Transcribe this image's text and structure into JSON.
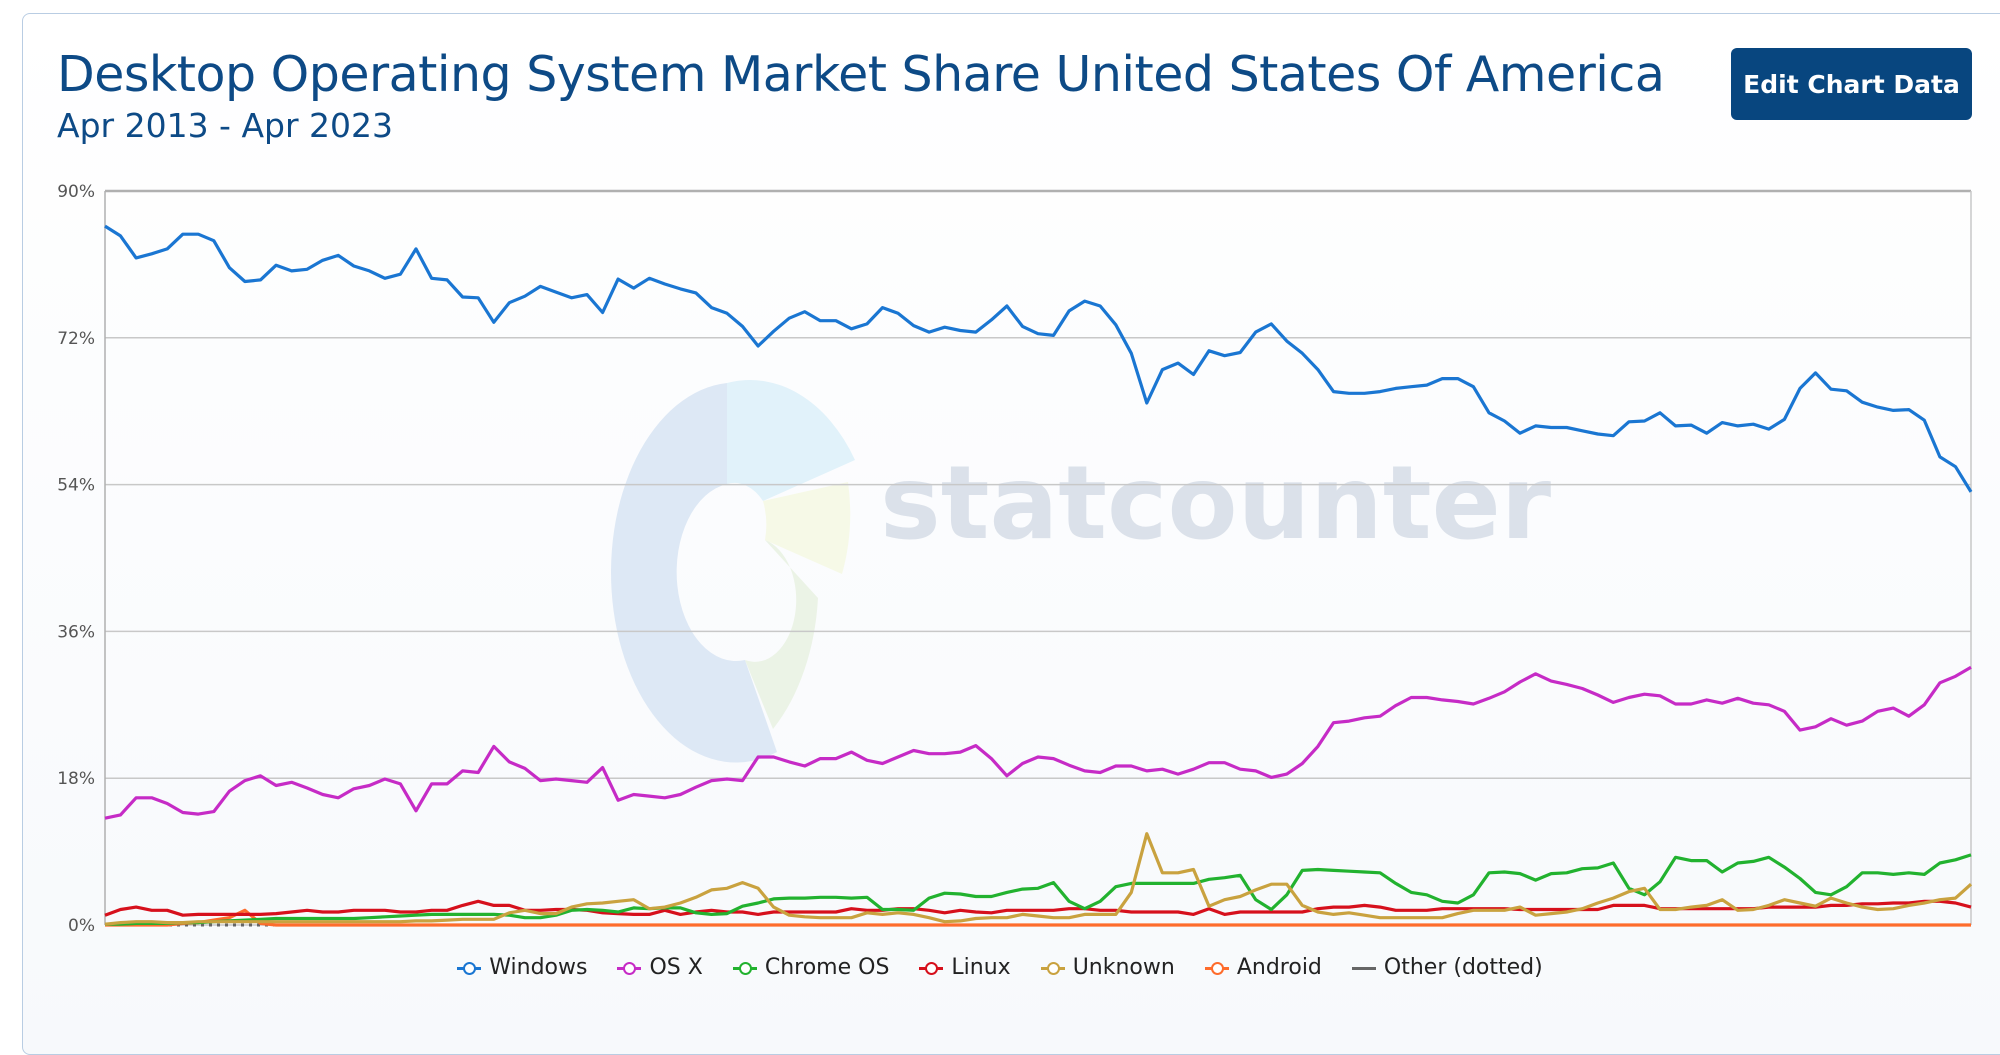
{
  "header": {
    "title": "Desktop Operating System Market Share United States Of America",
    "subtitle": "Apr 2013 - Apr 2023",
    "edit_button": "Edit Chart Data"
  },
  "watermark": "statcounter",
  "chart_data": {
    "type": "line",
    "title": "Desktop Operating System Market Share United States Of America",
    "subtitle": "Apr 2013 - Apr 2023",
    "x_start": "Apr 2013",
    "x_end": "Apr 2023",
    "x_interval": "monthly",
    "ylim": [
      0,
      90
    ],
    "yticks": [
      0,
      18,
      36,
      54,
      72,
      90
    ],
    "ytick_labels": [
      "0%",
      "18%",
      "36%",
      "54%",
      "72%",
      "90%"
    ],
    "grid": true,
    "legend_position": "bottom",
    "series": [
      {
        "name": "Windows",
        "color": "#1a76d2",
        "values": [
          85.7,
          84.5,
          81.8,
          82.3,
          82.9,
          84.7,
          84.7,
          83.9,
          80.6,
          78.9,
          79.1,
          80.9,
          80.2,
          80.4,
          81.5,
          82.1,
          80.8,
          80.2,
          79.3,
          79.8,
          82.9,
          79.3,
          79.1,
          77.0,
          76.9,
          73.9,
          76.3,
          77.1,
          78.3,
          77.6,
          76.9,
          77.3,
          75.1,
          79.2,
          78.1,
          79.3,
          78.6,
          78.0,
          77.5,
          75.7,
          75.0,
          73.4,
          71.0,
          72.8,
          74.4,
          75.2,
          74.1,
          74.1,
          73.1,
          73.7,
          75.7,
          75.0,
          73.5,
          72.7,
          73.3,
          72.9,
          72.7,
          74.2,
          75.9,
          73.4,
          72.5,
          72.3,
          75.3,
          76.5,
          75.9,
          73.6,
          70.1,
          64.0,
          68.1,
          68.9,
          67.5,
          70.4,
          69.8,
          70.2,
          72.7,
          73.7,
          71.6,
          70.1,
          68.1,
          65.4,
          65.2,
          65.2,
          65.4,
          65.8,
          66.0,
          66.2,
          67.0,
          67.0,
          66.0,
          62.8,
          61.8,
          60.3,
          61.2,
          61.0,
          61.0,
          60.6,
          60.2,
          60.0,
          61.7,
          61.8,
          62.8,
          61.2,
          61.3,
          60.3,
          61.6,
          61.2,
          61.4,
          60.8,
          62.0,
          65.8,
          67.7,
          65.7,
          65.5,
          64.1,
          63.5,
          63.1,
          63.2,
          61.9,
          57.4,
          56.2,
          53.1
        ]
      },
      {
        "name": "OS X",
        "color": "#c62bc6",
        "values": [
          13.1,
          13.5,
          15.6,
          15.6,
          14.9,
          13.8,
          13.6,
          13.9,
          16.4,
          17.7,
          18.3,
          17.1,
          17.5,
          16.8,
          16.0,
          15.6,
          16.7,
          17.1,
          17.9,
          17.3,
          14.0,
          17.3,
          17.3,
          18.9,
          18.7,
          21.9,
          20.0,
          19.2,
          17.7,
          17.9,
          17.7,
          17.5,
          19.3,
          15.3,
          16.0,
          15.8,
          15.6,
          16.0,
          16.9,
          17.7,
          17.9,
          17.7,
          20.6,
          20.6,
          20.0,
          19.5,
          20.4,
          20.4,
          21.2,
          20.2,
          19.8,
          20.6,
          21.4,
          21.0,
          21.0,
          21.2,
          22.0,
          20.4,
          18.3,
          19.8,
          20.6,
          20.4,
          19.6,
          18.9,
          18.7,
          19.5,
          19.5,
          18.9,
          19.1,
          18.5,
          19.1,
          19.9,
          19.9,
          19.1,
          18.9,
          18.1,
          18.5,
          19.8,
          21.9,
          24.8,
          25.0,
          25.4,
          25.6,
          26.9,
          27.9,
          27.9,
          27.6,
          27.4,
          27.1,
          27.8,
          28.6,
          29.8,
          30.8,
          29.9,
          29.5,
          29.0,
          28.2,
          27.3,
          27.9,
          28.3,
          28.1,
          27.1,
          27.1,
          27.6,
          27.2,
          27.8,
          27.2,
          27.0,
          26.2,
          23.9,
          24.3,
          25.3,
          24.5,
          25.0,
          26.2,
          26.6,
          25.6,
          27.0,
          29.7,
          30.5,
          31.6
        ]
      },
      {
        "name": "Chrome OS",
        "color": "#22b22f",
        "values": [
          0.1,
          0.1,
          0.2,
          0.2,
          0.2,
          0.3,
          0.3,
          0.4,
          0.5,
          0.6,
          0.7,
          0.8,
          0.8,
          0.8,
          0.8,
          0.8,
          0.8,
          0.9,
          1.0,
          1.1,
          1.2,
          1.3,
          1.3,
          1.3,
          1.3,
          1.3,
          1.2,
          0.9,
          0.9,
          1.2,
          1.8,
          1.9,
          1.8,
          1.6,
          2.1,
          2.0,
          2.1,
          2.1,
          1.5,
          1.3,
          1.4,
          2.3,
          2.7,
          3.2,
          3.3,
          3.3,
          3.4,
          3.4,
          3.3,
          3.4,
          1.9,
          1.9,
          1.8,
          3.3,
          3.9,
          3.8,
          3.5,
          3.5,
          4.0,
          4.4,
          4.5,
          5.2,
          2.9,
          2.0,
          2.9,
          4.7,
          5.1,
          5.1,
          5.1,
          5.1,
          5.1,
          5.6,
          5.8,
          6.1,
          3.1,
          1.9,
          3.7,
          6.7,
          6.8,
          6.7,
          6.6,
          6.5,
          6.4,
          5.1,
          4.0,
          3.7,
          2.9,
          2.7,
          3.7,
          6.4,
          6.5,
          6.3,
          5.5,
          6.3,
          6.4,
          6.9,
          7.0,
          7.6,
          4.5,
          3.7,
          5.3,
          8.3,
          7.9,
          7.9,
          6.5,
          7.6,
          7.8,
          8.3,
          7.1,
          5.7,
          4.0,
          3.7,
          4.7,
          6.4,
          6.4,
          6.2,
          6.4,
          6.2,
          7.6,
          8.0,
          8.6
        ]
      },
      {
        "name": "Linux",
        "color": "#d6101c",
        "values": [
          1.2,
          1.9,
          2.2,
          1.8,
          1.8,
          1.2,
          1.3,
          1.3,
          1.3,
          1.3,
          1.3,
          1.4,
          1.6,
          1.8,
          1.6,
          1.6,
          1.8,
          1.8,
          1.8,
          1.6,
          1.6,
          1.8,
          1.8,
          2.4,
          2.9,
          2.4,
          2.4,
          1.8,
          1.8,
          1.9,
          1.9,
          1.8,
          1.5,
          1.4,
          1.3,
          1.3,
          1.8,
          1.3,
          1.6,
          1.8,
          1.6,
          1.6,
          1.3,
          1.6,
          1.6,
          1.6,
          1.6,
          1.6,
          2.0,
          1.8,
          1.8,
          2.0,
          2.0,
          1.8,
          1.5,
          1.8,
          1.6,
          1.5,
          1.8,
          1.8,
          1.8,
          1.8,
          2.0,
          2.0,
          1.8,
          1.8,
          1.6,
          1.6,
          1.6,
          1.6,
          1.3,
          2.0,
          1.3,
          1.6,
          1.6,
          1.6,
          1.6,
          1.6,
          2.0,
          2.2,
          2.2,
          2.4,
          2.2,
          1.8,
          1.8,
          1.8,
          2.0,
          2.0,
          2.0,
          2.0,
          2.0,
          1.9,
          1.9,
          1.9,
          1.9,
          1.9,
          1.9,
          2.4,
          2.4,
          2.4,
          2.0,
          2.0,
          2.0,
          2.0,
          2.0,
          2.0,
          2.0,
          2.2,
          2.2,
          2.2,
          2.2,
          2.4,
          2.4,
          2.6,
          2.6,
          2.7,
          2.7,
          2.9,
          2.9,
          2.7,
          2.2
        ]
      },
      {
        "name": "Unknown",
        "color": "#c9a23f",
        "values": [
          0.1,
          0.3,
          0.4,
          0.4,
          0.3,
          0.3,
          0.4,
          0.4,
          0.4,
          0.4,
          0.4,
          0.4,
          0.4,
          0.4,
          0.4,
          0.4,
          0.4,
          0.4,
          0.4,
          0.4,
          0.5,
          0.5,
          0.6,
          0.7,
          0.7,
          0.7,
          1.5,
          1.8,
          1.4,
          1.4,
          2.2,
          2.6,
          2.7,
          2.9,
          3.1,
          2.0,
          2.2,
          2.7,
          3.4,
          4.3,
          4.5,
          5.2,
          4.5,
          2.2,
          1.2,
          1.0,
          0.9,
          0.9,
          0.9,
          1.5,
          1.3,
          1.5,
          1.3,
          0.9,
          0.4,
          0.5,
          0.8,
          0.9,
          0.9,
          1.3,
          1.1,
          0.9,
          0.9,
          1.3,
          1.3,
          1.3,
          4.0,
          11.2,
          6.4,
          6.4,
          6.8,
          2.3,
          3.1,
          3.5,
          4.3,
          5.0,
          5.0,
          2.4,
          1.6,
          1.3,
          1.5,
          1.2,
          0.9,
          0.9,
          0.9,
          0.9,
          0.9,
          1.4,
          1.8,
          1.8,
          1.8,
          2.2,
          1.2,
          1.4,
          1.6,
          2.0,
          2.7,
          3.3,
          4.1,
          4.5,
          1.9,
          1.9,
          2.2,
          2.4,
          3.1,
          1.8,
          1.9,
          2.4,
          3.1,
          2.7,
          2.3,
          3.3,
          2.7,
          2.2,
          1.9,
          2.0,
          2.4,
          2.7,
          3.1,
          3.3,
          5.0
        ]
      },
      {
        "name": "Android",
        "color": "#fe6c2c",
        "values": [
          0,
          0,
          0,
          0,
          0,
          0.2,
          0.3,
          0.6,
          0.9,
          1.8,
          0.2,
          0,
          0,
          0,
          0,
          0,
          0,
          0,
          0,
          0,
          0,
          0,
          0,
          0,
          0,
          0,
          0,
          0,
          0,
          0,
          0,
          0,
          0,
          0,
          0,
          0,
          0,
          0,
          0,
          0,
          0,
          0,
          0,
          0,
          0,
          0,
          0,
          0,
          0,
          0,
          0,
          0,
          0,
          0,
          0,
          0,
          0,
          0,
          0,
          0,
          0,
          0,
          0,
          0,
          0,
          0,
          0,
          0,
          0,
          0,
          0,
          0,
          0,
          0,
          0,
          0,
          0,
          0,
          0,
          0,
          0,
          0,
          0,
          0,
          0,
          0,
          0,
          0,
          0,
          0,
          0,
          0,
          0,
          0,
          0,
          0,
          0,
          0,
          0,
          0,
          0,
          0,
          0,
          0,
          0,
          0,
          0,
          0,
          0,
          0,
          0,
          0,
          0,
          0,
          0,
          0,
          0,
          0,
          0,
          0,
          0
        ]
      },
      {
        "name": "Other (dotted)",
        "color": "#666666",
        "dotted": true,
        "values": [
          0,
          0,
          0,
          0,
          0,
          0,
          0,
          0,
          0,
          0,
          0,
          0,
          0,
          0,
          0,
          0,
          0,
          0,
          0,
          0,
          0,
          0,
          0,
          0,
          0,
          0,
          0,
          0,
          0,
          0,
          0,
          0,
          0,
          0,
          0,
          0,
          0,
          0,
          0,
          0,
          0,
          0,
          0,
          0,
          0,
          0,
          0,
          0,
          0,
          0,
          0,
          0,
          0,
          0,
          0,
          0,
          0,
          0,
          0,
          0,
          0,
          0,
          0,
          0,
          0,
          0,
          0,
          0,
          0,
          0,
          0,
          0,
          0,
          0,
          0,
          0,
          0,
          0,
          0,
          0,
          0,
          0,
          0,
          0,
          0,
          0,
          0,
          0,
          0,
          0,
          0,
          0,
          0,
          0,
          0,
          0,
          0,
          0,
          0,
          0,
          0,
          0,
          0,
          0,
          0,
          0,
          0,
          0,
          0,
          0,
          0,
          0,
          0,
          0,
          0,
          0,
          0,
          0,
          0,
          0,
          0
        ]
      }
    ]
  }
}
